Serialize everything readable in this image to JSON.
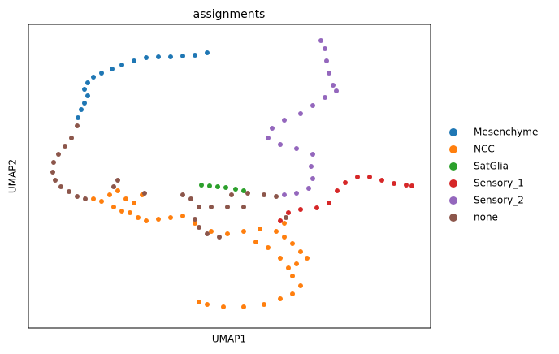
{
  "chart_data": {
    "type": "scatter",
    "title": "assignments",
    "xlabel": "UMAP1",
    "ylabel": "UMAP2",
    "xlim": [
      0,
      495
    ],
    "ylim": [
      0,
      374
    ],
    "legend": "right",
    "series": [
      {
        "name": "Mesenchyme",
        "color": "#1f77b4",
        "x": [
          220,
          205,
          190,
          175,
          160,
          145,
          130,
          115,
          103,
          90,
          80,
          73,
          69,
          73,
          69,
          65,
          61
        ],
        "y": [
          339,
          336,
          335,
          334,
          334,
          333,
          329,
          324,
          319,
          314,
          309,
          302,
          294,
          286,
          277,
          269,
          259
        ]
      },
      {
        "name": "NCC",
        "color": "#ff7f0e",
        "x": [
          80,
          90,
          100,
          110,
          120,
          130,
          105,
          115,
          125,
          135,
          145,
          140,
          160,
          175,
          190,
          205,
          225,
          245,
          265,
          285,
          305,
          315,
          325,
          335,
          343,
          330,
          320,
          310,
          295,
          280,
          325,
          335,
          325,
          310,
          290,
          265,
          240,
          220,
          210,
          315
        ],
        "y": [
          159,
          156,
          164,
          169,
          159,
          154,
          149,
          144,
          142,
          136,
          132,
          164,
          134,
          136,
          138,
          129,
          119,
          116,
          119,
          122,
          119,
          112,
          104,
          94,
          86,
          79,
          74,
          86,
          99,
          106,
          64,
          52,
          42,
          36,
          29,
          26,
          26,
          29,
          32,
          129
        ]
      },
      {
        "name": "SatGlia",
        "color": "#2ca02c",
        "x": [
          213,
          223,
          233,
          243,
          255,
          265
        ],
        "y": [
          176,
          175,
          174,
          173,
          171,
          169
        ]
      },
      {
        "name": "Sensory_1",
        "color": "#d62728",
        "x": [
          310,
          320,
          335,
          355,
          370,
          380,
          390,
          405,
          420,
          435,
          450,
          465,
          472
        ],
        "y": [
          132,
          142,
          146,
          148,
          154,
          169,
          179,
          186,
          186,
          182,
          178,
          176,
          175
        ]
      },
      {
        "name": "Sensory_2",
        "color": "#9467bd",
        "x": [
          360,
          365,
          367,
          370,
          375,
          379,
          365,
          350,
          335,
          315,
          300,
          295,
          310,
          330,
          350,
          348,
          350,
          345,
          330,
          315
        ],
        "y": [
          354,
          344,
          329,
          314,
          299,
          292,
          284,
          274,
          264,
          256,
          246,
          234,
          226,
          221,
          214,
          199,
          184,
          172,
          166,
          164
        ]
      },
      {
        "name": "none",
        "color": "#8c564b",
        "x": [
          60,
          53,
          45,
          37,
          31,
          30,
          33,
          40,
          50,
          60,
          70,
          110,
          105,
          143,
          190,
          200,
          210,
          225,
          245,
          265,
          205,
          210,
          220,
          235,
          250,
          270,
          290,
          305,
          317
        ],
        "y": [
          249,
          234,
          224,
          214,
          204,
          192,
          182,
          174,
          168,
          162,
          159,
          182,
          174,
          166,
          164,
          159,
          149,
          149,
          149,
          149,
          134,
          124,
          116,
          112,
          164,
          166,
          164,
          162,
          136
        ]
      }
    ]
  }
}
